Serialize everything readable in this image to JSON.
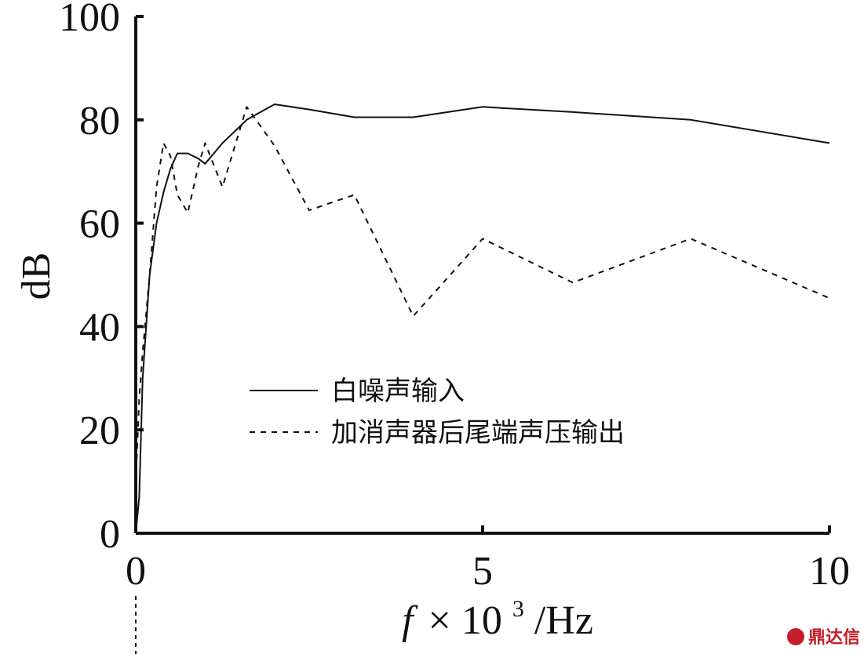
{
  "chart_data": {
    "type": "line",
    "xlabel": {
      "italic": "f",
      "text": "× 10",
      "sup": "3",
      "unit": "/Hz"
    },
    "ylabel": "dB",
    "xlim": [
      0,
      10
    ],
    "ylim": [
      0,
      100
    ],
    "x_ticks": [
      "0",
      "5",
      "10"
    ],
    "y_ticks": [
      "0",
      "20",
      "40",
      "60",
      "80",
      "100"
    ],
    "grid": false,
    "legend_position": "center-left",
    "series": [
      {
        "name": "白噪声输入",
        "style": "solid",
        "color": "#111111",
        "x": [
          0.0,
          0.05,
          0.1,
          0.2,
          0.3,
          0.4,
          0.5,
          0.6,
          0.75,
          0.9,
          1.0,
          1.25,
          1.6,
          2.0,
          2.5,
          3.15,
          4.0,
          5.0,
          6.3,
          8.0,
          10.0
        ],
        "y": [
          0,
          7,
          30,
          50,
          60,
          66,
          70.5,
          73.5,
          73.5,
          72.5,
          71.5,
          75.5,
          80,
          83,
          82,
          80.5,
          80.5,
          82.5,
          81.5,
          80,
          75.5
        ]
      },
      {
        "name": "加消声器后尾端声压输出",
        "style": "dashed",
        "color": "#111111",
        "x": [
          0.0,
          0.05,
          0.1,
          0.2,
          0.3,
          0.4,
          0.5,
          0.6,
          0.75,
          0.9,
          1.0,
          1.25,
          1.6,
          2.0,
          2.5,
          3.15,
          4.0,
          5.0,
          6.3,
          8.0,
          10.0
        ],
        "y": [
          10,
          26,
          35,
          50,
          67,
          75.5,
          73,
          65.5,
          62,
          71,
          75.5,
          67,
          82.5,
          75,
          62.5,
          65.5,
          42,
          57,
          48.5,
          57,
          45.5
        ]
      }
    ]
  },
  "watermark": {
    "text": "鼎达信",
    "color": "#c41e2a"
  }
}
